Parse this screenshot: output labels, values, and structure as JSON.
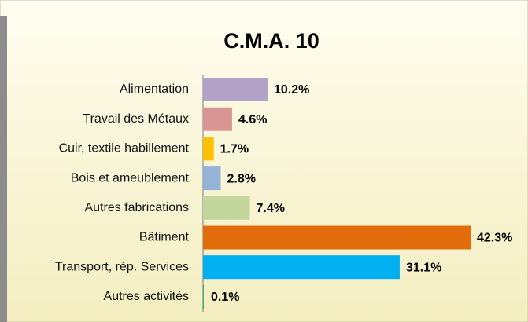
{
  "chart_data": {
    "type": "barh",
    "title": "C.M.A. 10",
    "categories": [
      "Alimentation",
      "Travail des Métaux",
      "Cuir, textile habillement",
      "Bois et ameublement",
      "Autres fabrications",
      "Bâtiment",
      "Transport, rép. Services",
      "Autres activités"
    ],
    "values": [
      10.2,
      4.6,
      1.7,
      2.8,
      7.4,
      42.3,
      31.1,
      0.1
    ],
    "value_labels": [
      "10.2%",
      "4.6%",
      "1.7%",
      "2.8%",
      "7.4%",
      "42.3%",
      "31.1%",
      "0.1%"
    ],
    "colors": [
      "#b3a2c7",
      "#d99594",
      "#ffc000",
      "#95b3d7",
      "#c3d69b",
      "#e36c0a",
      "#00b0f0",
      "#00b050"
    ]
  }
}
